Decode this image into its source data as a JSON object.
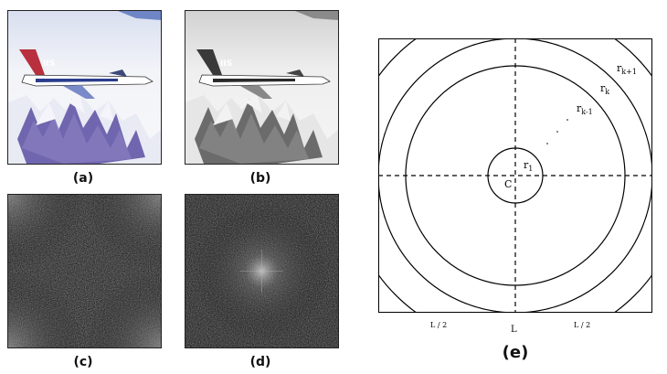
{
  "panels": {
    "a": {
      "caption": "(a)",
      "content": "color fighter jet over snowy mountains"
    },
    "b": {
      "caption": "(b)",
      "content": "grayscale fighter jet over snowy mountains"
    },
    "c": {
      "caption": "(c)",
      "content": "fourier magnitude spectrum, uncentered"
    },
    "d": {
      "caption": "(d)",
      "content": "fourier magnitude spectrum, centered"
    },
    "e": {
      "caption": "(e)"
    }
  },
  "diagram": {
    "center_label": "C",
    "rings": [
      {
        "label": "r",
        "sub": "1"
      },
      {
        "label": "r",
        "sub": "k-1"
      },
      {
        "label": "r",
        "sub": "k"
      },
      {
        "label": "r",
        "sub": "k+1"
      }
    ],
    "bottom_labels": {
      "left": "L / 2",
      "center": "L",
      "right": "L / 2"
    }
  },
  "colors": {
    "jet_tail": "#b8303d",
    "jet_body": "#ffffff",
    "mountain": "#5b4fa2",
    "snow": "#eef0f6",
    "sky": "#6f86c6"
  }
}
